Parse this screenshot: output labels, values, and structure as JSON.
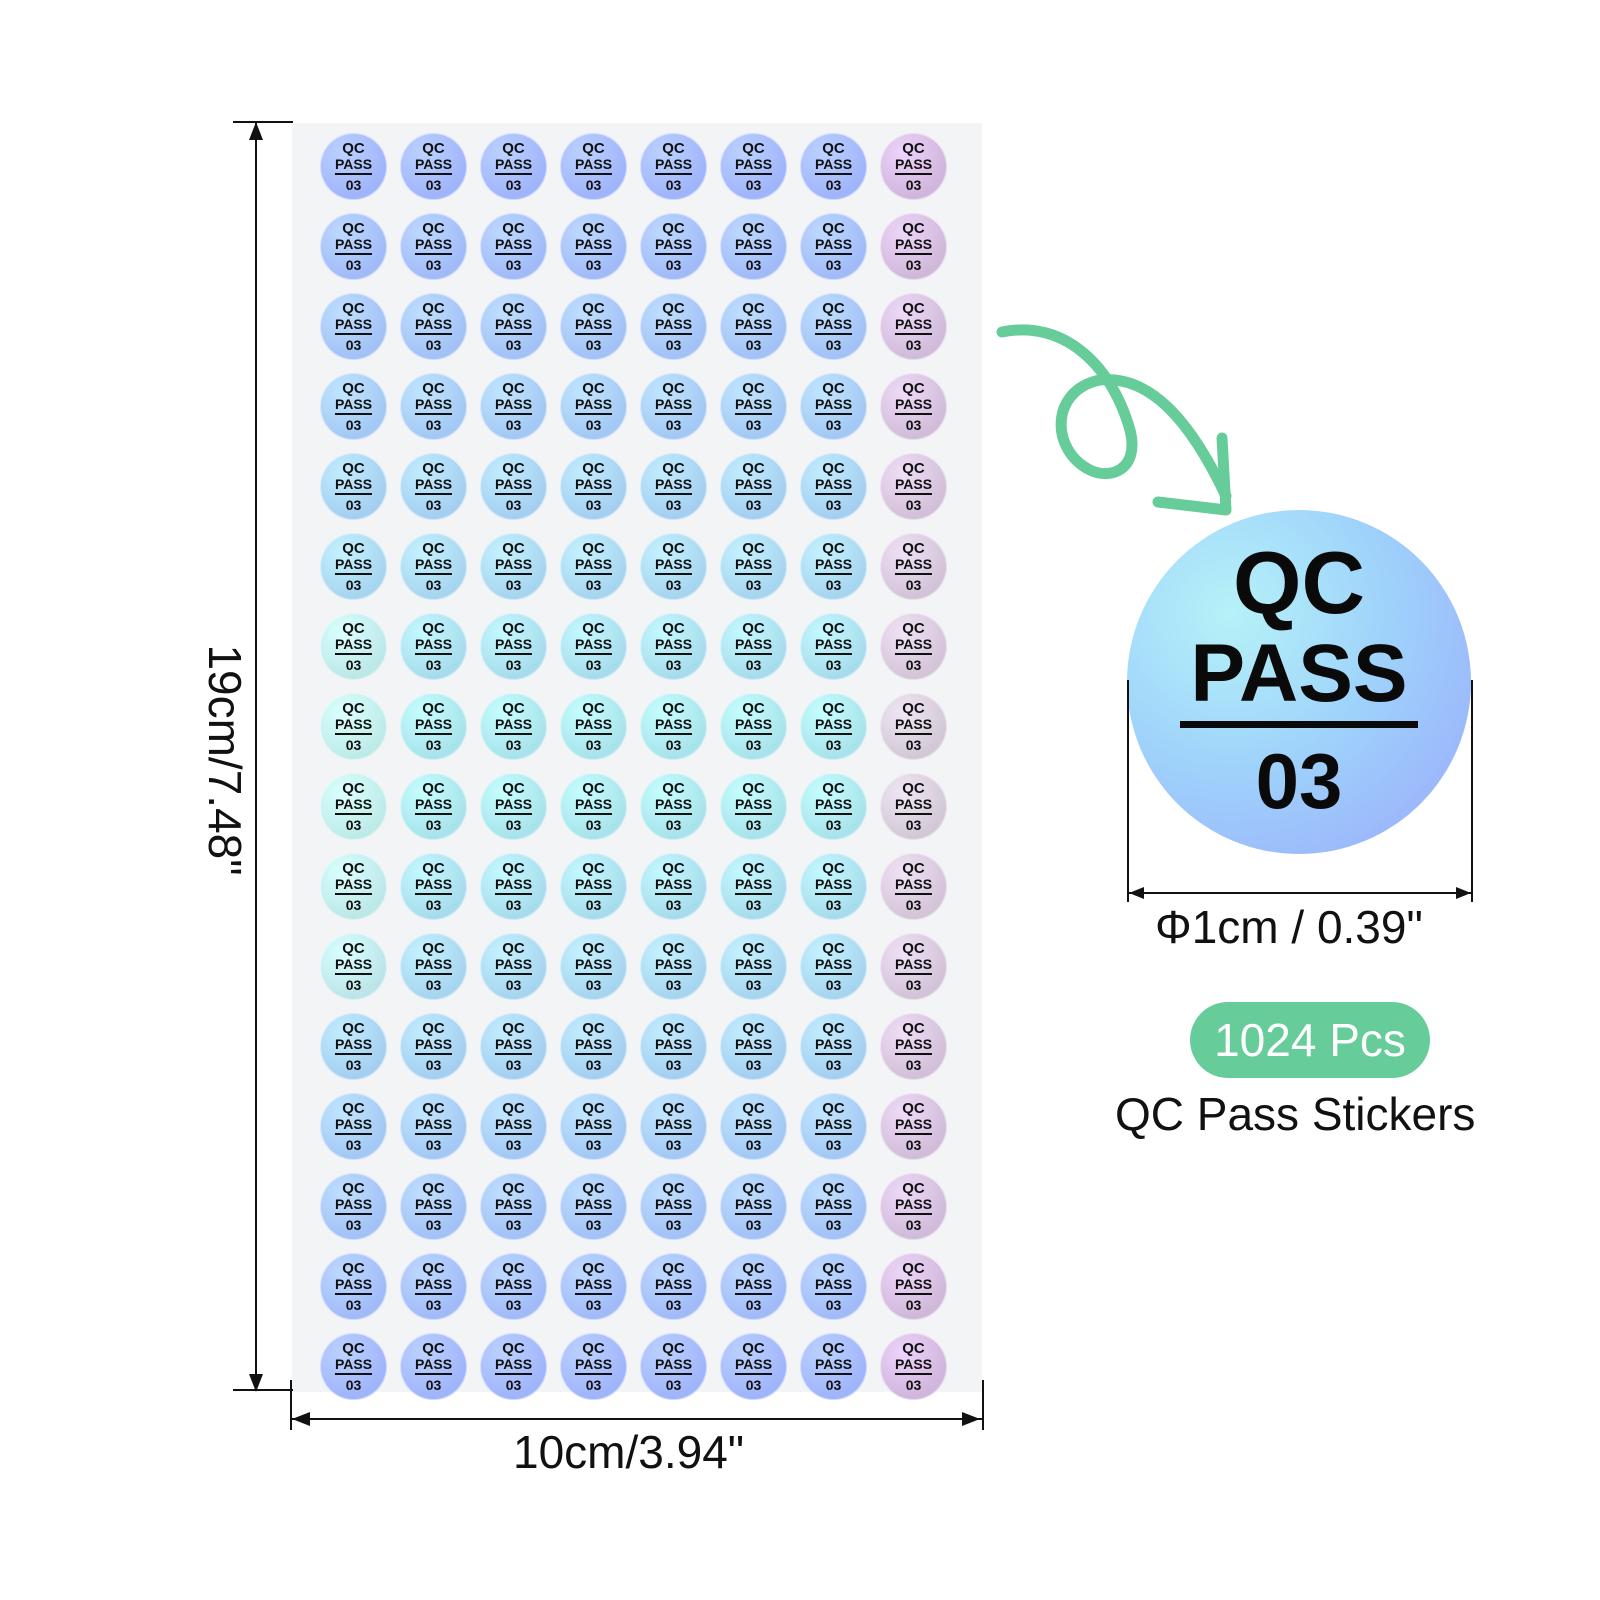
{
  "sticker": {
    "line1": "QC",
    "line2": "PASS",
    "line3": "03"
  },
  "grid": {
    "rows": 16,
    "cols": 8
  },
  "dimensions": {
    "height": "19cm/7.48\"",
    "width": "10cm/3.94\"",
    "diameter": "Φ1cm / 0.39\""
  },
  "badge": {
    "count": "1024 Pcs"
  },
  "product": {
    "label": "QC Pass Stickers"
  },
  "colors": {
    "badge": "#66cc99",
    "arrow": "#66cc99",
    "sticker_blue": "#9fb4fa",
    "sticker_teal": "#a9e6ea",
    "sticker_pink": "#f0b6c8"
  }
}
